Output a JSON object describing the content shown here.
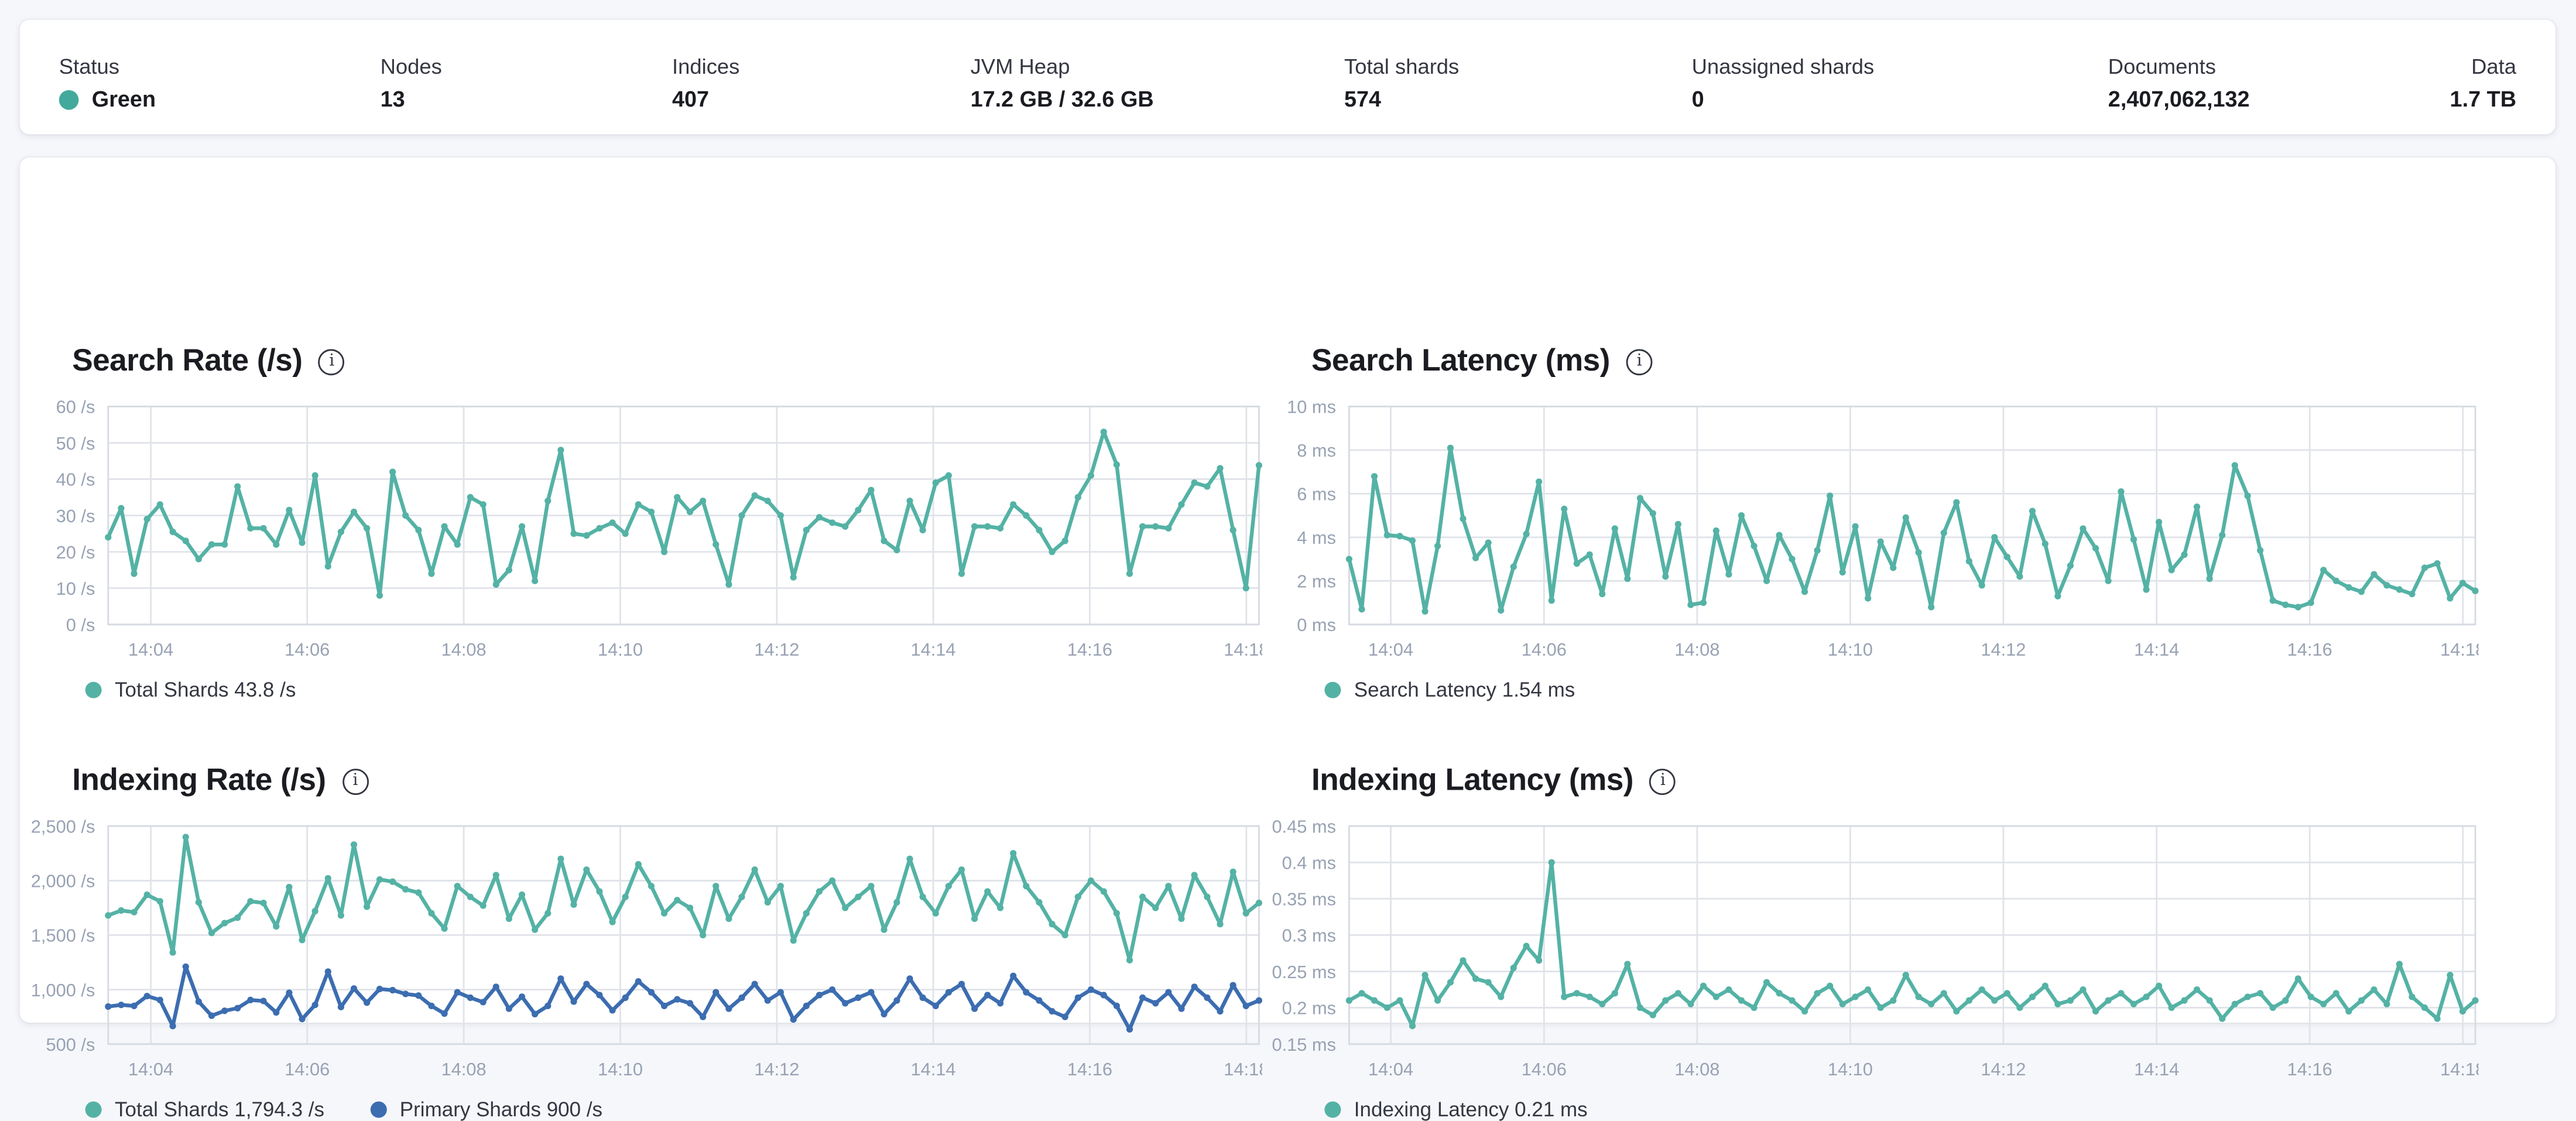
{
  "overview": {
    "status_color": "#43a99c",
    "stats": [
      {
        "label": "Status",
        "value": "Green"
      },
      {
        "label": "Nodes",
        "value": "13"
      },
      {
        "label": "Indices",
        "value": "407"
      },
      {
        "label": "JVM Heap",
        "value": "17.2 GB / 32.6 GB"
      },
      {
        "label": "Total shards",
        "value": "574"
      },
      {
        "label": "Unassigned shards",
        "value": "0"
      },
      {
        "label": "Documents",
        "value": "2,407,062,132"
      },
      {
        "label": "Data",
        "value": "1.7 TB"
      }
    ]
  },
  "chart_data": [
    {
      "type": "line",
      "title": "Search Rate (/s)",
      "y_domain": [
        0,
        60
      ],
      "y_ticks": [
        {
          "v": 60,
          "label": "60 /s"
        },
        {
          "v": 50,
          "label": "50 /s"
        },
        {
          "v": 40,
          "label": "40 /s"
        },
        {
          "v": 30,
          "label": "30 /s"
        },
        {
          "v": 20,
          "label": "20 /s"
        },
        {
          "v": 10,
          "label": "10 /s"
        },
        {
          "v": 0,
          "label": "0 /s"
        }
      ],
      "x_ticks": [
        {
          "f": 0.037,
          "label": "14:04"
        },
        {
          "f": 0.173,
          "label": "14:06"
        },
        {
          "f": 0.309,
          "label": "14:08"
        },
        {
          "f": 0.445,
          "label": "14:10"
        },
        {
          "f": 0.581,
          "label": "14:12"
        },
        {
          "f": 0.717,
          "label": "14:14"
        },
        {
          "f": 0.853,
          "label": "14:16"
        },
        {
          "f": 0.989,
          "label": "14:18"
        }
      ],
      "series": [
        {
          "name": "Total Shards",
          "color": "#54b2a5",
          "values": [
            24,
            32,
            14,
            29,
            33,
            25.5,
            23,
            18,
            22,
            22,
            38,
            26.5,
            26.5,
            22,
            31.5,
            22.5,
            41,
            16,
            25.5,
            31,
            26.5,
            8,
            42,
            30,
            26,
            14,
            27,
            22,
            35,
            33,
            11,
            15,
            27,
            12,
            34,
            48,
            25,
            24.5,
            26.5,
            28,
            25,
            33,
            31,
            20,
            35,
            31,
            34,
            22,
            11,
            30,
            35.5,
            34,
            30,
            13,
            26,
            29.5,
            28,
            27,
            31.5,
            37,
            23,
            20.5,
            34,
            26,
            39,
            41,
            14,
            27,
            27,
            26.5,
            33,
            30,
            26,
            20,
            23,
            35,
            41,
            53,
            44,
            14,
            27,
            27,
            26.5,
            33,
            39,
            38,
            43,
            26,
            10,
            43.8
          ]
        }
      ],
      "legend": [
        {
          "label": "Total Shards 43.8 /s",
          "color": "#54b2a5"
        }
      ]
    },
    {
      "type": "line",
      "title": "Search Latency (ms)",
      "y_domain": [
        0,
        10
      ],
      "y_ticks": [
        {
          "v": 10,
          "label": "10 ms"
        },
        {
          "v": 8,
          "label": "8 ms"
        },
        {
          "v": 6,
          "label": "6 ms"
        },
        {
          "v": 4,
          "label": "4 ms"
        },
        {
          "v": 2,
          "label": "2 ms"
        },
        {
          "v": 0,
          "label": "0 ms"
        }
      ],
      "x_ticks": [
        {
          "f": 0.037,
          "label": "14:04"
        },
        {
          "f": 0.173,
          "label": "14:06"
        },
        {
          "f": 0.309,
          "label": "14:08"
        },
        {
          "f": 0.445,
          "label": "14:10"
        },
        {
          "f": 0.581,
          "label": "14:12"
        },
        {
          "f": 0.717,
          "label": "14:14"
        },
        {
          "f": 0.853,
          "label": "14:16"
        },
        {
          "f": 0.989,
          "label": "14:18"
        }
      ],
      "series": [
        {
          "name": "Search Latency",
          "color": "#54b2a5",
          "values": [
            3,
            0.7,
            6.8,
            4.1,
            4.05,
            3.85,
            0.6,
            3.6,
            8.1,
            4.85,
            3.05,
            3.75,
            0.65,
            2.65,
            4.15,
            6.55,
            1.1,
            5.3,
            2.8,
            3.2,
            1.4,
            4.4,
            2.1,
            5.8,
            5.1,
            2.2,
            4.6,
            0.9,
            1.0,
            4.3,
            2.3,
            5.0,
            3.6,
            2.0,
            4.1,
            3.0,
            1.5,
            3.4,
            5.9,
            2.4,
            4.5,
            1.2,
            3.8,
            2.6,
            4.9,
            3.3,
            0.8,
            4.2,
            5.6,
            2.9,
            1.8,
            4.0,
            3.1,
            2.2,
            5.2,
            3.7,
            1.3,
            2.7,
            4.4,
            3.5,
            2.0,
            6.1,
            3.9,
            1.6,
            4.7,
            2.5,
            3.2,
            5.4,
            2.1,
            4.1,
            7.3,
            5.9,
            3.4,
            1.1,
            0.9,
            0.8,
            1.0,
            2.5,
            2.0,
            1.7,
            1.5,
            2.3,
            1.8,
            1.6,
            1.4,
            2.6,
            2.8,
            1.2,
            1.9,
            1.54
          ]
        }
      ],
      "legend": [
        {
          "label": "Search Latency 1.54 ms",
          "color": "#54b2a5"
        }
      ]
    },
    {
      "type": "line",
      "title": "Indexing Rate (/s)",
      "y_domain": [
        500,
        2500
      ],
      "y_ticks": [
        {
          "v": 2500,
          "label": "2,500 /s"
        },
        {
          "v": 2000,
          "label": "2,000 /s"
        },
        {
          "v": 1500,
          "label": "1,500 /s"
        },
        {
          "v": 1000,
          "label": "1,000 /s"
        },
        {
          "v": 500,
          "label": "500 /s"
        }
      ],
      "x_ticks": [
        {
          "f": 0.037,
          "label": "14:04"
        },
        {
          "f": 0.173,
          "label": "14:06"
        },
        {
          "f": 0.309,
          "label": "14:08"
        },
        {
          "f": 0.445,
          "label": "14:10"
        },
        {
          "f": 0.581,
          "label": "14:12"
        },
        {
          "f": 0.717,
          "label": "14:14"
        },
        {
          "f": 0.853,
          "label": "14:16"
        },
        {
          "f": 0.989,
          "label": "14:18"
        }
      ],
      "series": [
        {
          "name": "Total Shards",
          "color": "#54b2a5",
          "values": [
            1680,
            1725,
            1710,
            1870,
            1810,
            1340,
            2400,
            1800,
            1520,
            1610,
            1660,
            1810,
            1795,
            1580,
            1940,
            1455,
            1720,
            2020,
            1680,
            2330,
            1760,
            2010,
            1990,
            1920,
            1890,
            1700,
            1560,
            1950,
            1850,
            1770,
            2050,
            1650,
            1870,
            1550,
            1700,
            2200,
            1780,
            2100,
            1900,
            1620,
            1850,
            2150,
            1950,
            1700,
            1820,
            1750,
            1500,
            1950,
            1650,
            1850,
            2100,
            1800,
            1950,
            1450,
            1700,
            1900,
            2000,
            1750,
            1850,
            1950,
            1550,
            1800,
            2200,
            1850,
            1700,
            1950,
            2100,
            1650,
            1900,
            1750,
            2250,
            1950,
            1800,
            1600,
            1500,
            1850,
            2000,
            1900,
            1700,
            1270,
            1850,
            1750,
            1950,
            1650,
            2050,
            1850,
            1600,
            2080,
            1700,
            1794.3
          ]
        },
        {
          "name": "Primary Shards",
          "color": "#3c6db0",
          "values": [
            845,
            860,
            850,
            940,
            905,
            665,
            1210,
            890,
            760,
            805,
            830,
            905,
            895,
            790,
            970,
            730,
            860,
            1165,
            840,
            1010,
            880,
            1005,
            995,
            960,
            945,
            850,
            780,
            975,
            925,
            885,
            1025,
            825,
            935,
            775,
            850,
            1100,
            890,
            1050,
            950,
            810,
            925,
            1075,
            975,
            850,
            910,
            875,
            750,
            975,
            825,
            925,
            1050,
            900,
            975,
            725,
            850,
            950,
            1000,
            875,
            925,
            975,
            775,
            900,
            1100,
            925,
            850,
            975,
            1050,
            825,
            950,
            875,
            1125,
            975,
            900,
            800,
            750,
            925,
            1000,
            950,
            850,
            635,
            925,
            875,
            975,
            825,
            1025,
            925,
            800,
            1040,
            850,
            900
          ]
        }
      ],
      "legend": [
        {
          "label": "Total Shards 1,794.3 /s",
          "color": "#54b2a5"
        },
        {
          "label": "Primary Shards 900 /s",
          "color": "#3c6db0"
        }
      ]
    },
    {
      "type": "line",
      "title": "Indexing Latency (ms)",
      "y_domain": [
        0.15,
        0.45
      ],
      "y_ticks": [
        {
          "v": 0.45,
          "label": "0.45 ms"
        },
        {
          "v": 0.4,
          "label": "0.4 ms"
        },
        {
          "v": 0.35,
          "label": "0.35 ms"
        },
        {
          "v": 0.3,
          "label": "0.3 ms"
        },
        {
          "v": 0.25,
          "label": "0.25 ms"
        },
        {
          "v": 0.2,
          "label": "0.2 ms"
        },
        {
          "v": 0.15,
          "label": "0.15 ms"
        }
      ],
      "x_ticks": [
        {
          "f": 0.037,
          "label": "14:04"
        },
        {
          "f": 0.173,
          "label": "14:06"
        },
        {
          "f": 0.309,
          "label": "14:08"
        },
        {
          "f": 0.445,
          "label": "14:10"
        },
        {
          "f": 0.581,
          "label": "14:12"
        },
        {
          "f": 0.717,
          "label": "14:14"
        },
        {
          "f": 0.853,
          "label": "14:16"
        },
        {
          "f": 0.989,
          "label": "14:18"
        }
      ],
      "series": [
        {
          "name": "Indexing Latency",
          "color": "#54b2a5",
          "values": [
            0.21,
            0.22,
            0.21,
            0.2,
            0.21,
            0.175,
            0.245,
            0.21,
            0.235,
            0.265,
            0.24,
            0.235,
            0.215,
            0.255,
            0.285,
            0.265,
            0.4,
            0.215,
            0.22,
            0.215,
            0.205,
            0.22,
            0.26,
            0.2,
            0.19,
            0.21,
            0.22,
            0.205,
            0.23,
            0.215,
            0.225,
            0.21,
            0.2,
            0.235,
            0.22,
            0.21,
            0.195,
            0.22,
            0.23,
            0.205,
            0.215,
            0.225,
            0.2,
            0.21,
            0.245,
            0.215,
            0.205,
            0.22,
            0.195,
            0.21,
            0.225,
            0.21,
            0.22,
            0.2,
            0.215,
            0.23,
            0.205,
            0.21,
            0.225,
            0.195,
            0.21,
            0.22,
            0.205,
            0.215,
            0.23,
            0.2,
            0.21,
            0.225,
            0.21,
            0.185,
            0.205,
            0.215,
            0.22,
            0.2,
            0.21,
            0.24,
            0.215,
            0.205,
            0.22,
            0.195,
            0.21,
            0.225,
            0.205,
            0.26,
            0.215,
            0.2,
            0.185,
            0.245,
            0.195,
            0.21
          ]
        }
      ],
      "legend": [
        {
          "label": "Indexing Latency 0.21 ms",
          "color": "#54b2a5"
        }
      ]
    }
  ]
}
